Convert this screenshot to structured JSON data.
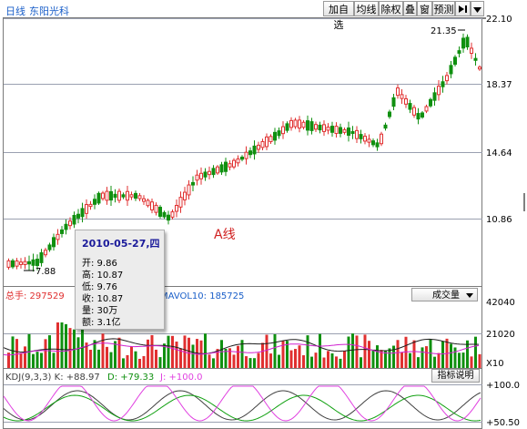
{
  "header": {
    "period": "日线",
    "stock_name": "东阳光科",
    "buttons": [
      "加自选",
      "均线",
      "除权",
      "叠",
      "窗",
      "预测"
    ],
    "nav_icon": "skip-icon",
    "dropdown_icon": "triangle-down-icon"
  },
  "price_axis": [
    "22.10",
    "18.37",
    "14.64",
    "10.86"
  ],
  "high_label": "21.35",
  "low_label": "7.88",
  "annotation": "A线",
  "tooltip": {
    "date": "2010-05-27,四",
    "rows": [
      "开: 9.86",
      "高: 10.87",
      "低: 9.76",
      "收: 10.87",
      "量: 30万",
      "额: 3.1亿"
    ]
  },
  "volume_panel": {
    "label": "总手: 297529",
    "mavol": "MAVOL10: 185725",
    "selector": "成交量",
    "axis": [
      "42040",
      "21020",
      "X10"
    ]
  },
  "kdj_panel": {
    "label": "KDJ(9,3,3) K: +88.97",
    "d": "D: +79.33",
    "j": "J: +100.0",
    "button": "指标说明",
    "axis": [
      "+100.0",
      "+50.50"
    ]
  },
  "colors": {
    "up": "#e03030",
    "down": "#109010",
    "k": "#404040",
    "d": "#10a010",
    "j": "#e040e0",
    "accent_blue": "#1a5fc9"
  }
}
